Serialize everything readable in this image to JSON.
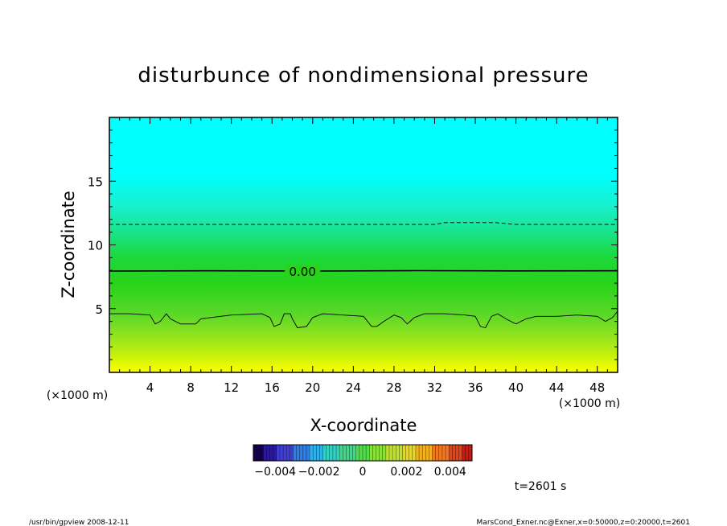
{
  "chart_data": {
    "type": "heatmap",
    "title": "disturbunce of nondimensional pressure",
    "xlabel": "X-coordinate",
    "ylabel": "Z-coordinate",
    "x_unit": "(×1000 m)",
    "y_unit": "(×1000 m)",
    "xlim": [
      0,
      50
    ],
    "ylim": [
      0,
      20
    ],
    "x_ticks": [
      4,
      8,
      12,
      16,
      20,
      24,
      28,
      32,
      36,
      40,
      44,
      48
    ],
    "y_ticks": [
      5,
      10,
      15
    ],
    "color_gradient": [
      {
        "z": 0,
        "color": "#ffff00"
      },
      {
        "z": 1.2,
        "color": "#ccf20a"
      },
      {
        "z": 2.5,
        "color": "#9de61a"
      },
      {
        "z": 4.5,
        "color": "#5cd828"
      },
      {
        "z": 7,
        "color": "#28d31a"
      },
      {
        "z": 9,
        "color": "#1cd83a"
      },
      {
        "z": 11,
        "color": "#18e48a"
      },
      {
        "z": 13,
        "color": "#18f0cc"
      },
      {
        "z": 15.5,
        "color": "#00ffff"
      },
      {
        "z": 20,
        "color": "#00ffff"
      }
    ],
    "contours": [
      {
        "label": "0.00",
        "style": "solid-thick",
        "label_x": 17.5,
        "points": [
          [
            0,
            7.95
          ],
          [
            10,
            7.97
          ],
          [
            20,
            7.95
          ],
          [
            30,
            7.98
          ],
          [
            40,
            7.96
          ],
          [
            50,
            7.97
          ]
        ]
      },
      {
        "label": "",
        "style": "dashed",
        "points": [
          [
            0,
            11.6
          ],
          [
            20,
            11.6
          ],
          [
            32,
            11.6
          ],
          [
            33,
            11.75
          ],
          [
            38,
            11.75
          ],
          [
            40,
            11.6
          ],
          [
            50,
            11.6
          ]
        ]
      },
      {
        "label": "",
        "style": "solid-thin",
        "points": [
          [
            0,
            4.6
          ],
          [
            2,
            4.6
          ],
          [
            4,
            4.5
          ],
          [
            4.5,
            3.8
          ],
          [
            5,
            4.0
          ],
          [
            5.6,
            4.6
          ],
          [
            6,
            4.2
          ],
          [
            7,
            3.8
          ],
          [
            8.5,
            3.8
          ],
          [
            9,
            4.2
          ],
          [
            10,
            4.3
          ],
          [
            12,
            4.5
          ],
          [
            15,
            4.6
          ],
          [
            15.8,
            4.3
          ],
          [
            16.2,
            3.6
          ],
          [
            16.8,
            3.8
          ],
          [
            17.2,
            4.6
          ],
          [
            17.8,
            4.6
          ],
          [
            18,
            4.2
          ],
          [
            18.5,
            3.5
          ],
          [
            19.4,
            3.6
          ],
          [
            20,
            4.3
          ],
          [
            21,
            4.6
          ],
          [
            23,
            4.5
          ],
          [
            25,
            4.4
          ],
          [
            25.8,
            3.6
          ],
          [
            26.3,
            3.6
          ],
          [
            27,
            4.0
          ],
          [
            28,
            4.5
          ],
          [
            28.7,
            4.3
          ],
          [
            29.3,
            3.8
          ],
          [
            30,
            4.3
          ],
          [
            31,
            4.6
          ],
          [
            33,
            4.6
          ],
          [
            35,
            4.5
          ],
          [
            36,
            4.4
          ],
          [
            36.5,
            3.6
          ],
          [
            37,
            3.5
          ],
          [
            37.6,
            4.4
          ],
          [
            38.2,
            4.6
          ],
          [
            39,
            4.2
          ],
          [
            40,
            3.8
          ],
          [
            41,
            4.2
          ],
          [
            42,
            4.4
          ],
          [
            44,
            4.4
          ],
          [
            46,
            4.5
          ],
          [
            48,
            4.4
          ],
          [
            48.8,
            4.0
          ],
          [
            49.5,
            4.3
          ],
          [
            50,
            4.8
          ]
        ]
      }
    ],
    "colorbar": {
      "range": [
        -0.005,
        0.005
      ],
      "tick_labels": [
        "−0.004",
        "−0.002",
        "0",
        "0.002",
        "0.004"
      ],
      "tick_values": [
        -0.004,
        -0.002,
        0,
        0.002,
        0.004
      ],
      "colors": [
        "#140048",
        "#2a1a96",
        "#3f3fd6",
        "#2f7ee6",
        "#2fb0e8",
        "#34d0c0",
        "#3ed888",
        "#52dc4a",
        "#8ae03a",
        "#c0e030",
        "#e6d820",
        "#f0b020",
        "#f07820",
        "#e04418",
        "#c81a14"
      ]
    },
    "time_label": "t=2601 s"
  },
  "footer": {
    "left": "/usr/bin/gpview   2008-12-11",
    "right": "MarsCond_Exner.nc@Exner,x=0:50000,z=0:20000,t=2601"
  }
}
